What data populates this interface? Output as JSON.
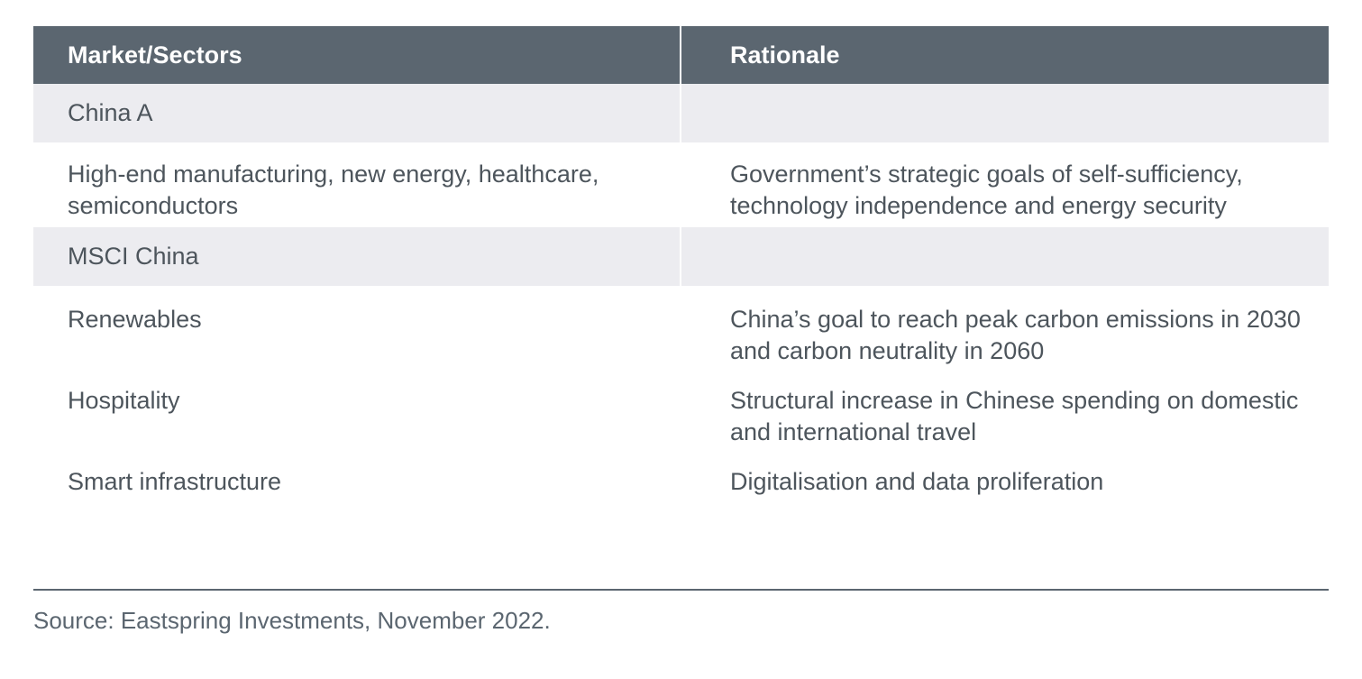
{
  "table": {
    "headers": [
      "Market/Sectors",
      "Rationale"
    ],
    "groups": [
      {
        "label": "China A",
        "rows": [
          {
            "sector": "High-end manufacturing, new energy, healthcare, semiconductors",
            "rationale": "Government’s strategic goals of self-sufficiency, technology independence and energy security"
          }
        ]
      },
      {
        "label": "MSCI China",
        "rows": [
          {
            "sector": "Renewables",
            "rationale": "China’s goal to reach peak carbon emissions in 2030 and carbon neutrality in 2060"
          },
          {
            "sector": "Hospitality",
            "rationale": "Structural increase in Chinese spending on domestic and international travel"
          },
          {
            "sector": "Smart infrastructure",
            "rationale": "Digitalisation and data proliferation"
          }
        ]
      }
    ]
  },
  "footer": {
    "source": "Source: Eastspring Investments, November 2022."
  },
  "colors": {
    "header_bg": "#5b6670",
    "group_bg": "#ececf0",
    "text": "#4d555c"
  }
}
